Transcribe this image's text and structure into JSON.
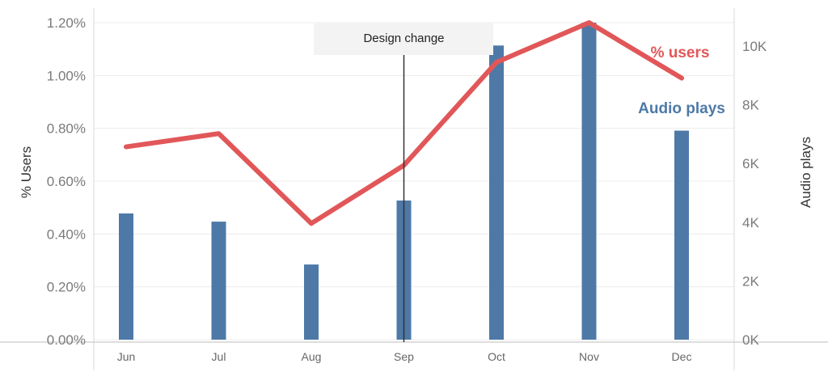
{
  "chart_data": {
    "type": "bar",
    "categories": [
      "Jun",
      "Jul",
      "Aug",
      "Sep",
      "Oct",
      "Nov",
      "Dec"
    ],
    "series": [
      {
        "name": "Audio plays",
        "type": "bar",
        "axis": "right",
        "color": "#4e79a7",
        "values": [
          4300,
          4020,
          2560,
          4740,
          10020,
          10800,
          7120
        ]
      },
      {
        "name": "% users",
        "type": "line",
        "axis": "left",
        "color": "#e15759",
        "values": [
          0.73,
          0.78,
          0.44,
          0.66,
          1.05,
          1.2,
          0.99
        ]
      }
    ],
    "left_axis": {
      "title": "% Users",
      "ticks": [
        "0.00%",
        "0.20%",
        "0.40%",
        "0.60%",
        "0.80%",
        "1.00%",
        "1.20%"
      ],
      "tick_values": [
        0,
        0.2,
        0.4,
        0.6,
        0.8,
        1.0,
        1.2
      ]
    },
    "right_axis": {
      "title": "Audio plays",
      "ticks": [
        "0K",
        "2K",
        "4K",
        "6K",
        "8K",
        "10K"
      ],
      "tick_values": [
        0,
        2000,
        4000,
        6000,
        8000,
        10000
      ]
    },
    "annotation": {
      "text": "Design change",
      "category": "Sep"
    },
    "gridlines": true,
    "legend": "inline labels"
  }
}
